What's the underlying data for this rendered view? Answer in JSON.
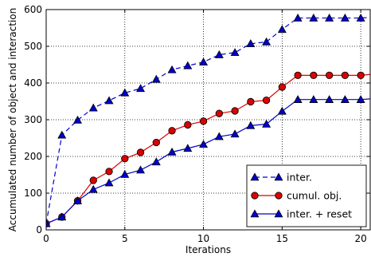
{
  "chart_data": {
    "type": "line",
    "xlabel": "Iterations",
    "ylabel": "Accumulated number of object and interaction",
    "xlim": [
      0,
      20.6
    ],
    "ylim": [
      0,
      600
    ],
    "x_ticks": [
      0,
      5,
      10,
      15,
      20
    ],
    "y_ticks": [
      0,
      100,
      200,
      300,
      400,
      500,
      600
    ],
    "grid": true,
    "grid_style": "dotted",
    "legend_position": "lower-right",
    "x": [
      0,
      1,
      2,
      3,
      4,
      5,
      6,
      7,
      8,
      9,
      10,
      11,
      12,
      13,
      14,
      15,
      16,
      17,
      18,
      19,
      20,
      21
    ],
    "series": [
      {
        "name": "inter.",
        "color": "#0000cc",
        "marker": "triangle",
        "line_style": "dashed",
        "values": [
          17,
          258,
          299,
          332,
          352,
          373,
          385,
          410,
          436,
          447,
          457,
          477,
          483,
          507,
          512,
          546,
          577,
          577,
          577,
          577,
          577,
          580
        ]
      },
      {
        "name": "cumul. obj.",
        "color": "#dd0000",
        "marker": "circle",
        "marker_fill": "#dd0000",
        "line_style": "solid",
        "values": [
          17,
          35,
          79,
          135,
          159,
          194,
          211,
          238,
          270,
          286,
          296,
          317,
          324,
          349,
          353,
          389,
          421,
          421,
          421,
          421,
          421,
          425
        ]
      },
      {
        "name": "inter. + reset",
        "color": "#0000cc",
        "marker": "triangle",
        "line_style": "solid",
        "values": [
          17,
          35,
          79,
          110,
          128,
          151,
          163,
          185,
          212,
          222,
          233,
          254,
          261,
          284,
          288,
          323,
          355,
          355,
          355,
          355,
          355,
          358
        ]
      }
    ]
  }
}
